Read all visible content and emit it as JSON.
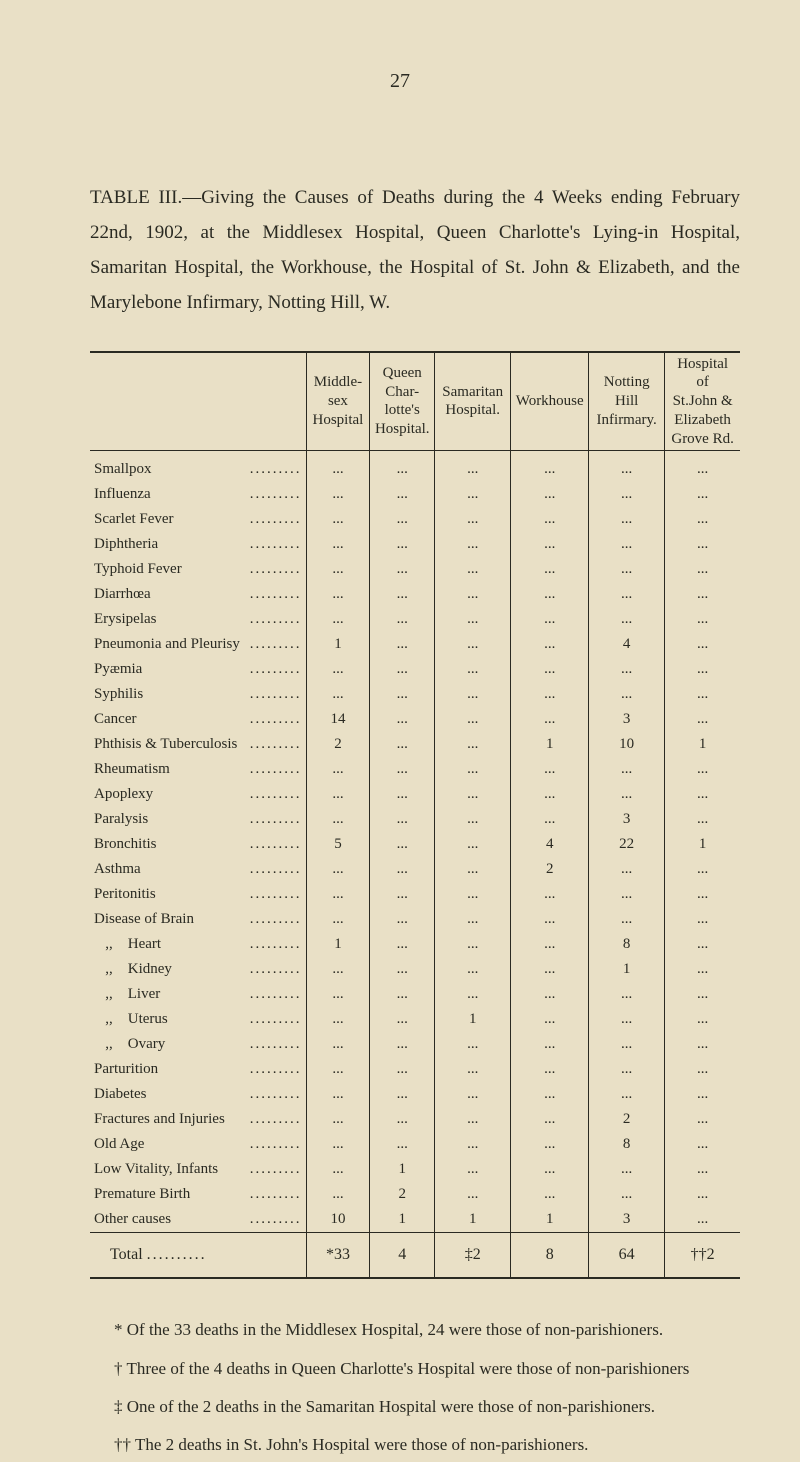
{
  "page_number": "27",
  "heading": "TABLE III.—Giving the Causes of Deaths during the 4 Weeks ending February 22nd, 1902, at the Middlesex Hospital, Queen Charlotte's Lying-in Hospital, Samaritan Hospital, the Workhouse, the Hospital of St. John & Elizabeth, and the Marylebone Infirmary, Notting Hill, W.",
  "columns": [
    "",
    "Middle-\nsex\nHospital",
    "Queen\nChar-\nlotte's\nHospital.",
    "Samaritan\nHospital.",
    "Workhouse",
    "Notting\nHill\nInfirmary.",
    "Hospital of\nSt.John &\nElizabeth\nGrove Rd."
  ],
  "rows": [
    {
      "label": "Smallpox",
      "v": [
        "...",
        "...",
        "...",
        "...",
        "...",
        "..."
      ]
    },
    {
      "label": "Influenza",
      "v": [
        "...",
        "...",
        "...",
        "...",
        "...",
        "..."
      ]
    },
    {
      "label": "Scarlet Fever",
      "v": [
        "...",
        "...",
        "...",
        "...",
        "...",
        "..."
      ]
    },
    {
      "label": "Diphtheria",
      "v": [
        "...",
        "...",
        "...",
        "...",
        "...",
        "..."
      ]
    },
    {
      "label": "Typhoid Fever",
      "v": [
        "...",
        "...",
        "...",
        "...",
        "...",
        "..."
      ]
    },
    {
      "label": "Diarrhœa",
      "v": [
        "...",
        "...",
        "...",
        "...",
        "...",
        "..."
      ]
    },
    {
      "label": "Erysipelas",
      "v": [
        "...",
        "...",
        "...",
        "...",
        "...",
        "..."
      ]
    },
    {
      "label": "Pneumonia and Pleurisy",
      "v": [
        "1",
        "...",
        "...",
        "...",
        "4",
        "..."
      ]
    },
    {
      "label": "Pyæmia",
      "v": [
        "...",
        "...",
        "...",
        "...",
        "...",
        "..."
      ]
    },
    {
      "label": "Syphilis",
      "v": [
        "...",
        "...",
        "...",
        "...",
        "...",
        "..."
      ]
    },
    {
      "label": "Cancer",
      "v": [
        "14",
        "...",
        "...",
        "...",
        "3",
        "..."
      ]
    },
    {
      "label": "Phthisis & Tuberculosis",
      "v": [
        "2",
        "...",
        "...",
        "1",
        "10",
        "1"
      ]
    },
    {
      "label": "Rheumatism",
      "v": [
        "...",
        "...",
        "...",
        "...",
        "...",
        "..."
      ]
    },
    {
      "label": "Apoplexy",
      "v": [
        "...",
        "...",
        "...",
        "...",
        "...",
        "..."
      ]
    },
    {
      "label": "Paralysis",
      "v": [
        "...",
        "...",
        "...",
        "...",
        "3",
        "..."
      ]
    },
    {
      "label": "Bronchitis",
      "v": [
        "5",
        "...",
        "...",
        "4",
        "22",
        "1"
      ]
    },
    {
      "label": "Asthma",
      "v": [
        "...",
        "...",
        "...",
        "2",
        "...",
        "..."
      ]
    },
    {
      "label": "Peritonitis",
      "v": [
        "...",
        "...",
        "...",
        "...",
        "...",
        "..."
      ]
    },
    {
      "label": "Disease of Brain",
      "v": [
        "...",
        "...",
        "...",
        "...",
        "...",
        "..."
      ]
    },
    {
      "label": "   ,,    Heart",
      "v": [
        "1",
        "...",
        "...",
        "...",
        "8",
        "..."
      ]
    },
    {
      "label": "   ,,    Kidney",
      "v": [
        "...",
        "...",
        "...",
        "...",
        "1",
        "..."
      ]
    },
    {
      "label": "   ,,    Liver",
      "v": [
        "...",
        "...",
        "...",
        "...",
        "...",
        "..."
      ]
    },
    {
      "label": "   ,,    Uterus",
      "v": [
        "...",
        "...",
        "1",
        "...",
        "...",
        "..."
      ]
    },
    {
      "label": "   ,,    Ovary",
      "v": [
        "...",
        "...",
        "...",
        "...",
        "...",
        "..."
      ]
    },
    {
      "label": "Parturition",
      "v": [
        "...",
        "...",
        "...",
        "...",
        "...",
        "..."
      ]
    },
    {
      "label": "Diabetes",
      "v": [
        "...",
        "...",
        "...",
        "...",
        "...",
        "..."
      ]
    },
    {
      "label": "Fractures and Injuries",
      "v": [
        "...",
        "...",
        "...",
        "...",
        "2",
        "..."
      ]
    },
    {
      "label": "Old Age",
      "v": [
        "...",
        "...",
        "...",
        "...",
        "8",
        "..."
      ]
    },
    {
      "label": "Low Vitality, Infants",
      "v": [
        "...",
        "1",
        "...",
        "...",
        "...",
        "..."
      ]
    },
    {
      "label": "Premature Birth",
      "v": [
        "...",
        "2",
        "...",
        "...",
        "...",
        "..."
      ]
    },
    {
      "label": "Other causes",
      "v": [
        "10",
        "1",
        "1",
        "1",
        "3",
        "..."
      ]
    }
  ],
  "total": {
    "label": "Total",
    "v": [
      "*33",
      "4",
      "‡2",
      "8",
      "64",
      "††2"
    ]
  },
  "footnotes": [
    "* Of the 33 deaths in the Middlesex Hospital, 24 were those of non-parishioners.",
    "† Three of the 4 deaths in Queen Charlotte's Hospital were those of non-parishioners",
    "‡ One of the 2 deaths in the Samaritan Hospital were those of non-parishioners.",
    "†† The 2 deaths in St. John's Hospital were those of non-parishioners."
  ],
  "colors": {
    "background": "#e9e0c6",
    "text": "#2a2a22",
    "rule": "#2a2a22"
  },
  "col_widths_pct": [
    32,
    10,
    10,
    12,
    12,
    12,
    12
  ]
}
